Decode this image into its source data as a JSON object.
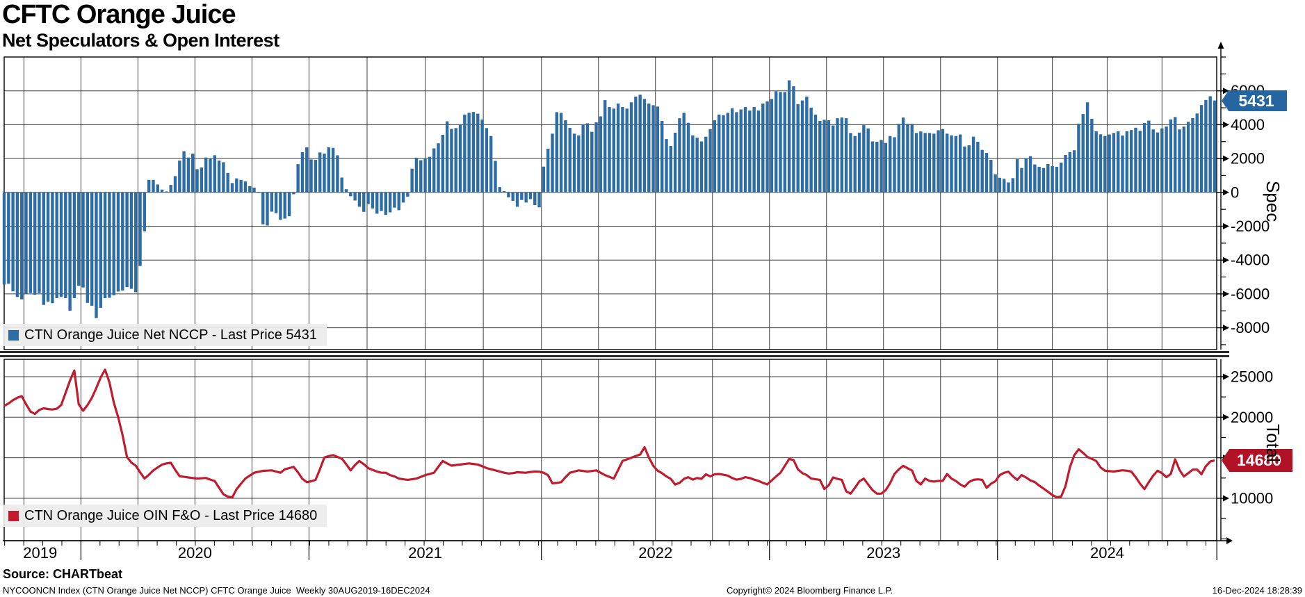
{
  "header": {
    "title": "CFTC Orange Juice",
    "subtitle": "Net Speculators & Open Interest"
  },
  "source_label": "Source: CHARTbeat",
  "footer": {
    "left": "NYCOONCN Index (CTN Orange Juice Net NCCP) CFTC Orange Juice  Weekly 30AUG2019-16DEC2024",
    "center": "Copyright© 2024 Bloomberg Finance L.P.",
    "right": "16-Dec-2024 18:28:39"
  },
  "colors": {
    "bar": "#2e6ca6",
    "line": "#c11b2d",
    "badge_spec": "#2565a0",
    "badge_total": "#b11226",
    "grid": "#3f3f3f",
    "frame": "#000000",
    "legend_bg": "#ececec"
  },
  "x_axis": {
    "year_labels": [
      "2019",
      "2020",
      "2021",
      "2022",
      "2023",
      "2024"
    ],
    "start": "30AUG2019",
    "end": "16DEC2024",
    "frequency": "weekly"
  },
  "chart_data": [
    {
      "type": "bar",
      "panel": "top",
      "title": "CTN Orange Juice Net NCCP",
      "legend": "CTN Orange Juice Net NCCP - Last Price 5431",
      "axis_label": "Spec",
      "last_price": 5431,
      "ylim": [
        -9290,
        8000
      ],
      "yticks": [
        -8000,
        -6000,
        -4000,
        -2000,
        0,
        2000,
        4000,
        6000
      ],
      "minor_step": 1000,
      "values": [
        -5450,
        -5400,
        -5850,
        -6180,
        -6320,
        -6000,
        -5950,
        -6050,
        -5950,
        -6650,
        -6450,
        -6550,
        -6250,
        -6180,
        -6250,
        -7000,
        -6250,
        -5520,
        -5620,
        -6530,
        -6700,
        -7430,
        -6820,
        -6250,
        -6230,
        -6080,
        -5860,
        -5800,
        -5600,
        -5700,
        -5900,
        -4350,
        -2300,
        740,
        740,
        465,
        165,
        55,
        440,
        960,
        1880,
        2430,
        2060,
        2290,
        1370,
        1470,
        2060,
        2015,
        2195,
        1880,
        1780,
        1150,
        550,
        825,
        740,
        645,
        370,
        275,
        -40,
        -1890,
        -1960,
        -1140,
        -1230,
        -1620,
        -1550,
        -1410,
        -110,
        1670,
        2380,
        2660,
        1945,
        1920,
        2360,
        2290,
        2660,
        2630,
        2190,
        875,
        190,
        -230,
        -480,
        -850,
        -1150,
        -700,
        -950,
        -1260,
        -1100,
        -1330,
        -1180,
        -900,
        -1050,
        -600,
        -250,
        1400,
        2050,
        1900,
        2000,
        2100,
        2600,
        2900,
        3400,
        4200,
        3750,
        3800,
        4000,
        4600,
        4700,
        4750,
        4650,
        4300,
        3800,
        3330,
        1860,
        315,
        80,
        -300,
        -500,
        -850,
        -450,
        -600,
        -400,
        -750,
        -880,
        1520,
        2580,
        3470,
        4740,
        4700,
        4260,
        3810,
        3470,
        3370,
        4010,
        4080,
        3580,
        4140,
        4490,
        5450,
        5040,
        4950,
        5250,
        5040,
        4950,
        5320,
        5660,
        5770,
        5520,
        5250,
        5150,
        5070,
        4220,
        3150,
        2740,
        3530,
        4380,
        4700,
        4110,
        3370,
        3230,
        3010,
        3290,
        3740,
        4260,
        4600,
        4560,
        4700,
        4970,
        4740,
        4900,
        5040,
        4835,
        5040,
        4835,
        5250,
        5380,
        5520,
        5970,
        5930,
        5930,
        6620,
        6270,
        5210,
        5430,
        5660,
        5010,
        4600,
        4220,
        4290,
        4260,
        3950,
        4380,
        4420,
        4380,
        3510,
        3330,
        3530,
        3970,
        3780,
        3010,
        2990,
        3100,
        2920,
        3330,
        3260,
        4050,
        4420,
        4050,
        4050,
        3510,
        3600,
        3510,
        3510,
        3470,
        3670,
        3740,
        3470,
        3370,
        3330,
        3420,
        2710,
        2780,
        3290,
        2990,
        2510,
        2330,
        1920,
        1070,
        860,
        800,
        590,
        840,
        1960,
        1440,
        2000,
        2140,
        1650,
        1510,
        1440,
        1680,
        1550,
        1510,
        1760,
        2210,
        2380,
        2490,
        4060,
        4630,
        5320,
        4350,
        3610,
        3430,
        3330,
        3420,
        3510,
        3610,
        3360,
        3610,
        3680,
        3820,
        3640,
        4100,
        4240,
        3720,
        3540,
        3780,
        3890,
        4310,
        4450,
        3720,
        3890,
        4170,
        4390,
        4660,
        5160,
        5460,
        5680,
        5431
      ]
    },
    {
      "type": "line",
      "panel": "bottom",
      "title": "CTN Orange Juice OIN F&O",
      "legend": "CTN Orange Juice OIN F&O - Last Price 14680",
      "axis_label": "Total",
      "last_price": 14680,
      "ylim": [
        4770,
        27140
      ],
      "yticks": [
        10000,
        15000,
        20000,
        25000
      ],
      "minor_step": 2500,
      "values": [
        21400,
        21700,
        22100,
        22400,
        22600,
        21600,
        20700,
        20400,
        20900,
        21100,
        21000,
        20950,
        21050,
        21500,
        23000,
        24500,
        25750,
        21600,
        20800,
        21500,
        22400,
        23600,
        24900,
        25860,
        24300,
        21800,
        20000,
        17800,
        15100,
        14400,
        14030,
        13200,
        12430,
        12900,
        13440,
        13800,
        14160,
        14300,
        14390,
        13500,
        12720,
        12650,
        12570,
        12500,
        12430,
        12470,
        12510,
        12300,
        12140,
        11300,
        10490,
        10200,
        10110,
        11120,
        11800,
        12430,
        12800,
        13150,
        13270,
        13380,
        13410,
        13440,
        13300,
        13150,
        13580,
        13730,
        13870,
        13200,
        12400,
        11990,
        12100,
        12280,
        13600,
        15030,
        15200,
        15320,
        15100,
        14890,
        14200,
        13440,
        14100,
        14600,
        14200,
        13730,
        13500,
        13300,
        13150,
        13150,
        12860,
        12700,
        12430,
        12350,
        12280,
        12350,
        12430,
        12650,
        12860,
        13000,
        13150,
        13900,
        14600,
        14300,
        14030,
        14100,
        14160,
        14230,
        14300,
        14230,
        14160,
        13950,
        13730,
        13580,
        13440,
        13300,
        13150,
        13060,
        13100,
        13210,
        13180,
        13150,
        13250,
        13300,
        13280,
        13150,
        12860,
        11850,
        11900,
        11990,
        12600,
        13150,
        13300,
        13440,
        13370,
        13300,
        13370,
        13440,
        13150,
        12860,
        12650,
        12430,
        13500,
        14600,
        14800,
        15000,
        15200,
        15400,
        16300,
        15030,
        14000,
        13400,
        13100,
        12700,
        12400,
        11700,
        11900,
        12400,
        12600,
        12300,
        12500,
        12400,
        12960,
        12700,
        12960,
        13000,
        12900,
        12800,
        12500,
        12300,
        12400,
        12600,
        12500,
        12300,
        12150,
        11900,
        11710,
        12200,
        12700,
        13140,
        14000,
        14860,
        14710,
        13570,
        13100,
        12860,
        12430,
        12350,
        12280,
        11140,
        11600,
        12570,
        12400,
        12280,
        10860,
        10570,
        11300,
        12100,
        12430,
        11700,
        11000,
        10570,
        10570,
        11000,
        11860,
        13000,
        13570,
        14000,
        13710,
        13430,
        12140,
        11710,
        12430,
        12140,
        12060,
        12140,
        12140,
        13000,
        12430,
        12140,
        11710,
        11430,
        12000,
        12280,
        12340,
        12280,
        11290,
        11800,
        12100,
        12860,
        13140,
        13280,
        12710,
        12280,
        12860,
        12570,
        12200,
        12000,
        11570,
        11200,
        10800,
        10400,
        10140,
        10200,
        11500,
        13800,
        15300,
        16050,
        15600,
        15100,
        14870,
        14600,
        13800,
        13400,
        13350,
        13300,
        13380,
        13450,
        13400,
        13300,
        12600,
        11800,
        11130,
        12000,
        12800,
        13400,
        13100,
        12600,
        13000,
        14810,
        13500,
        12690,
        13110,
        13540,
        13540,
        12970,
        13960,
        14530,
        14680
      ]
    }
  ]
}
